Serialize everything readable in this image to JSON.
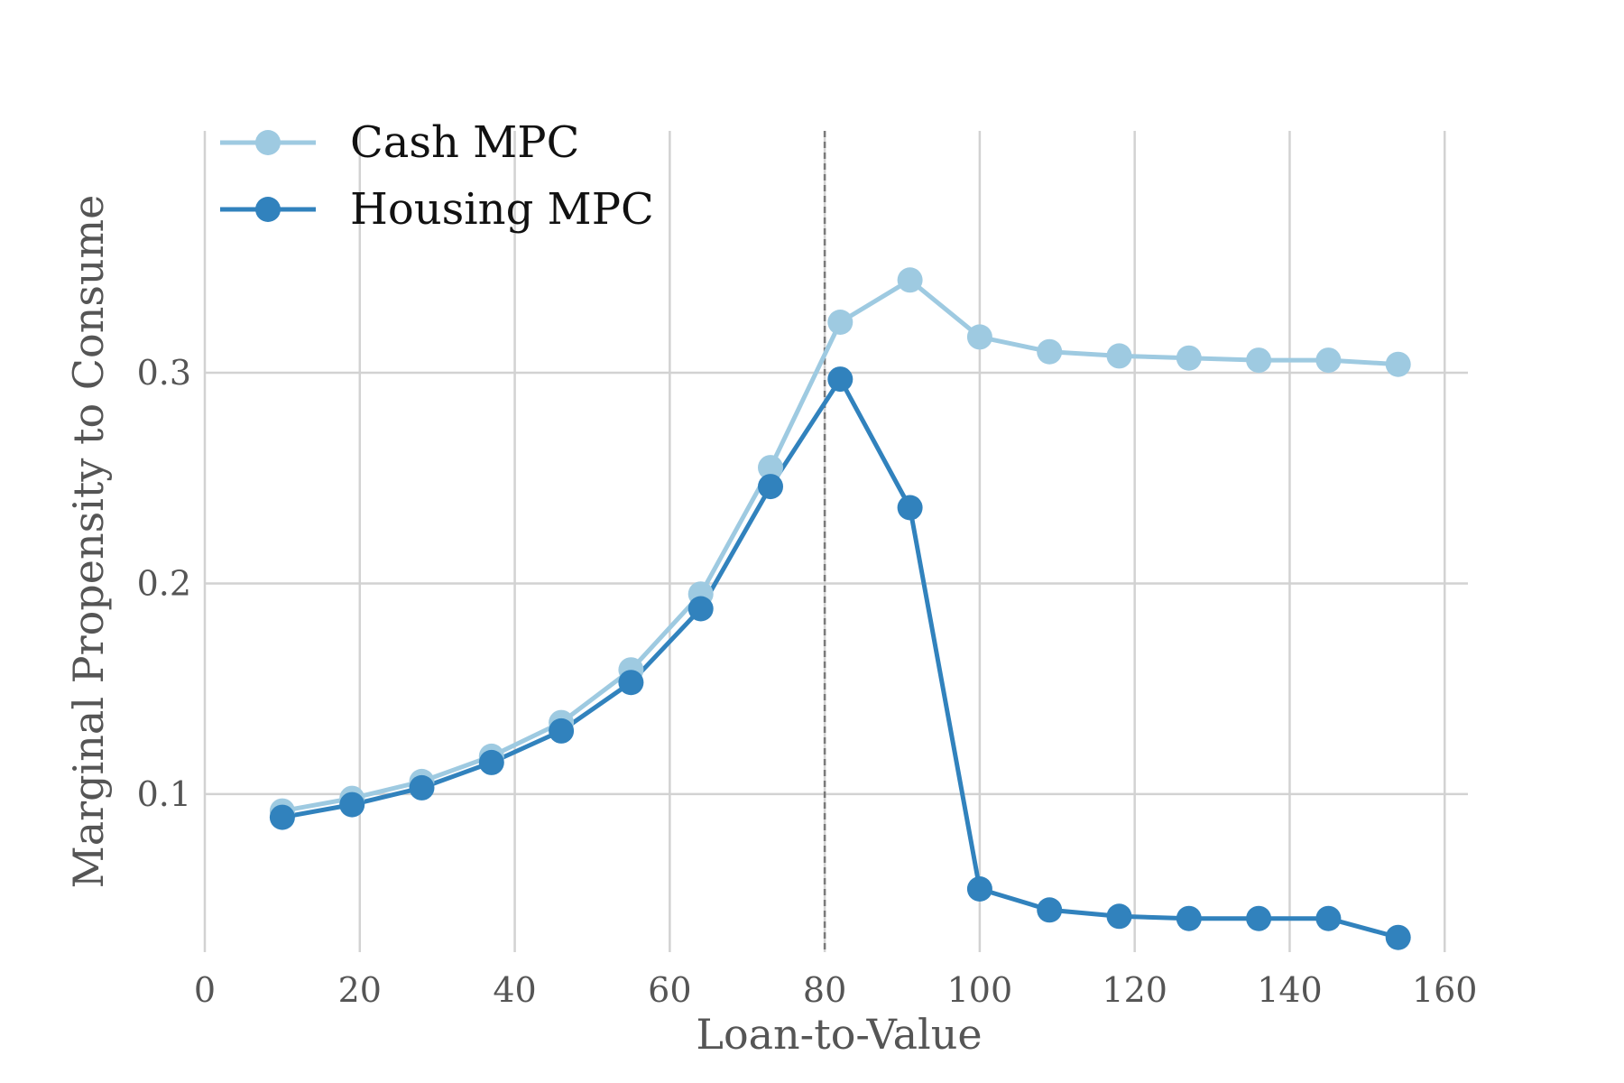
{
  "chart_data": {
    "type": "line",
    "title": "",
    "xlabel": "Loan-to-Value",
    "ylabel": "Marginal Propensity to Consume",
    "xlim": [
      0,
      163
    ],
    "ylim": [
      0.025,
      0.357
    ],
    "x_ticks": [
      0,
      20,
      40,
      60,
      80,
      100,
      120,
      140,
      160
    ],
    "y_ticks": [
      0.1,
      0.2,
      0.3
    ],
    "x_tick_labels": [
      "0",
      "20",
      "40",
      "60",
      "80",
      "100",
      "120",
      "140",
      "160"
    ],
    "y_tick_labels": [
      "0.1",
      "0.2",
      "0.3"
    ],
    "grid": true,
    "legend_position": "top-left",
    "reference_line": {
      "x": 80,
      "style": "dashed",
      "color": "#7a7a7a"
    },
    "x": [
      10,
      19,
      28,
      37,
      46,
      55,
      64,
      73,
      82,
      91,
      100,
      109,
      118,
      127,
      136,
      145,
      154
    ],
    "series": [
      {
        "name": "Cash MPC",
        "color": "#9ecae1",
        "values": [
          0.092,
          0.098,
          0.106,
          0.118,
          0.134,
          0.159,
          0.195,
          0.255,
          0.324,
          0.344,
          0.317,
          0.31,
          0.308,
          0.307,
          0.306,
          0.306,
          0.304
        ]
      },
      {
        "name": "Housing MPC",
        "color": "#3182bd",
        "values": [
          0.089,
          0.095,
          0.103,
          0.115,
          0.13,
          0.153,
          0.188,
          0.246,
          0.297,
          0.236,
          0.055,
          0.045,
          0.042,
          0.041,
          0.041,
          0.041,
          0.032
        ]
      }
    ]
  }
}
